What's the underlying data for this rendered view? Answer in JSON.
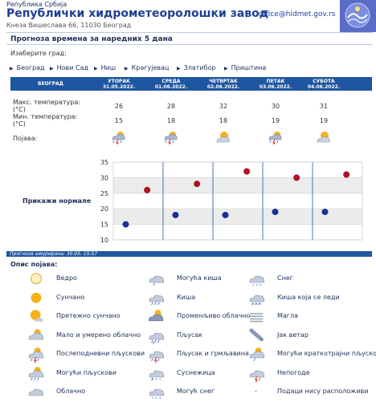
{
  "header": {
    "republic": "Република Србија",
    "org": "Републички хидрометеоролошки завод",
    "address": "Кнеза Вишеслава 66, 11030 Београд",
    "email": "office@hidmet.gov.rs"
  },
  "title": "Прогноза времена за наредних 5 дана",
  "pick_label": "Изаберите град:",
  "cities": [
    "Београд",
    "Нови Сад",
    "Ниш",
    "Крагујевац",
    "Златибор",
    "Приштина"
  ],
  "forecast": {
    "city": "БЕОГРАД",
    "days": [
      {
        "name": "УТОРАК",
        "date": "31.05.2022.",
        "max": "26",
        "min": "15",
        "icon": "rain-thunder-icon"
      },
      {
        "name": "СРЕДА",
        "date": "01.06.2022.",
        "max": "28",
        "min": "18",
        "icon": "rain-thunder-icon"
      },
      {
        "name": "ЧЕТВРТАК",
        "date": "02.06.2022.",
        "max": "32",
        "min": "18",
        "icon": "partly-cloudy-icon"
      },
      {
        "name": "ПЕТАК",
        "date": "03.06.2022.",
        "max": "30",
        "min": "19",
        "icon": "rain-thunder-icon"
      },
      {
        "name": "СУБОТА",
        "date": "04.06.2022.",
        "max": "31",
        "min": "19",
        "icon": "partly-cloudy-icon"
      }
    ],
    "max_label": "Макс. температура: (°C)",
    "min_label": "Мин. температура: (°C)",
    "phen_label": "Појава:"
  },
  "chart_data": {
    "type": "scatter",
    "title": "",
    "xlabel": "",
    "ylabel": "",
    "ylim": [
      10,
      35
    ],
    "yticks": [
      "35",
      "30",
      "25",
      "20",
      "15",
      "10"
    ],
    "categories": [
      "31.05.2022.",
      "01.06.2022.",
      "02.06.2022.",
      "03.06.2022.",
      "04.06.2022."
    ],
    "series": [
      {
        "values": [
          26,
          28,
          32,
          30,
          31
        ],
        "color": "#b01020"
      },
      {
        "values": [
          15,
          18,
          18,
          19,
          19
        ],
        "color": "#1a2f9a"
      }
    ],
    "grid": true,
    "button_label": "Прикажи нормале"
  },
  "updated": "Прогноза ажурирана:  30.05. 15:57",
  "legend": {
    "title": "Опис појава:",
    "items": [
      {
        "label": "Ведро",
        "icon": "clear-sun-icon"
      },
      {
        "label": "Могућа киша",
        "icon": "possible-rain-icon"
      },
      {
        "label": "Снег",
        "icon": "snow-icon"
      },
      {
        "label": "Сунчано",
        "icon": "sunny-icon"
      },
      {
        "label": "Киша",
        "icon": "rain-icon"
      },
      {
        "label": "Киша која се леди",
        "icon": "freezing-rain-icon"
      },
      {
        "label": "Претежно сунчано",
        "icon": "mostly-sunny-icon"
      },
      {
        "label": "Променљиво облачно",
        "icon": "variable-cloudy-icon"
      },
      {
        "label": "Магла",
        "icon": "fog-icon"
      },
      {
        "label": "Мало и умерено облачно",
        "icon": "partly-cloudy-icon"
      },
      {
        "label": "Пљусак",
        "icon": "shower-icon"
      },
      {
        "label": "Јак ветар",
        "icon": "strong-wind-icon"
      },
      {
        "label": "Послеподневни пљускови",
        "icon": "afternoon-showers-icon"
      },
      {
        "label": "Пљусак и грмљавина",
        "icon": "shower-thunder-icon"
      },
      {
        "label": "Могући краткотрајни пљускови",
        "icon": "possible-short-showers-icon"
      },
      {
        "label": "Могући пљускови",
        "icon": "possible-showers-icon"
      },
      {
        "label": "Суснежица",
        "icon": "sleet-icon"
      },
      {
        "label": "Непогоде",
        "icon": "storm-icon"
      },
      {
        "label": "Облачно",
        "icon": "cloudy-icon"
      },
      {
        "label": "Могућ снег",
        "icon": "possible-snow-icon"
      },
      {
        "label": "Подаци нису расположиви",
        "icon": "no-data-icon"
      }
    ],
    "no_data_mark": "-"
  }
}
